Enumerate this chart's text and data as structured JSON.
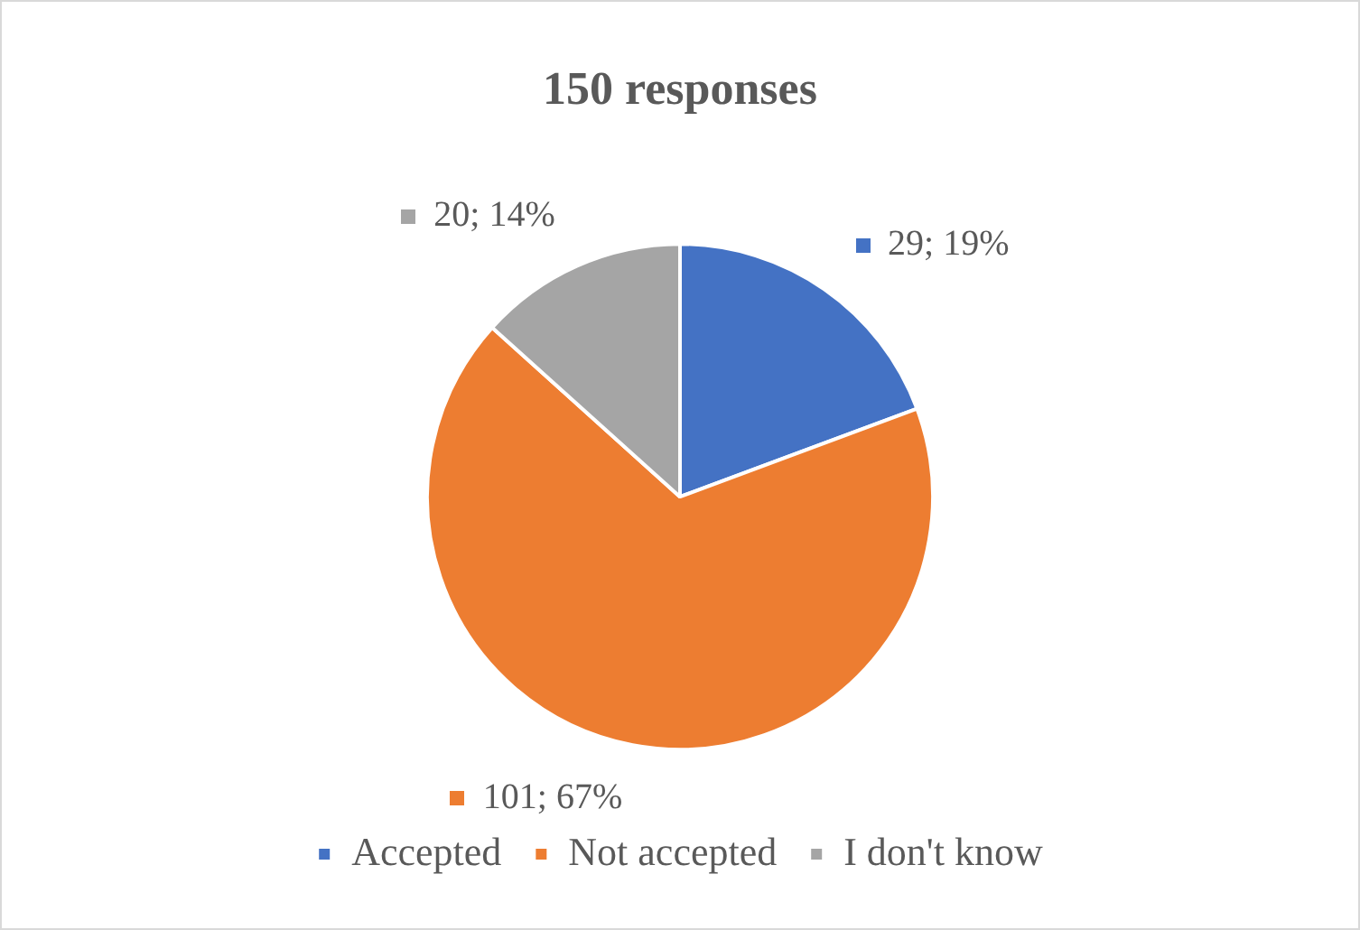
{
  "chart_data": {
    "type": "pie",
    "title": "150 responses",
    "categories": [
      "Accepted",
      "Not accepted",
      "I don't know"
    ],
    "values": [
      29,
      101,
      20
    ],
    "colors": [
      "#4472c4",
      "#ed7d31",
      "#a5a5a5"
    ],
    "value_labels": [
      "29; 19%",
      "101; 67%",
      "20; 14%"
    ],
    "legend": "bottom"
  }
}
